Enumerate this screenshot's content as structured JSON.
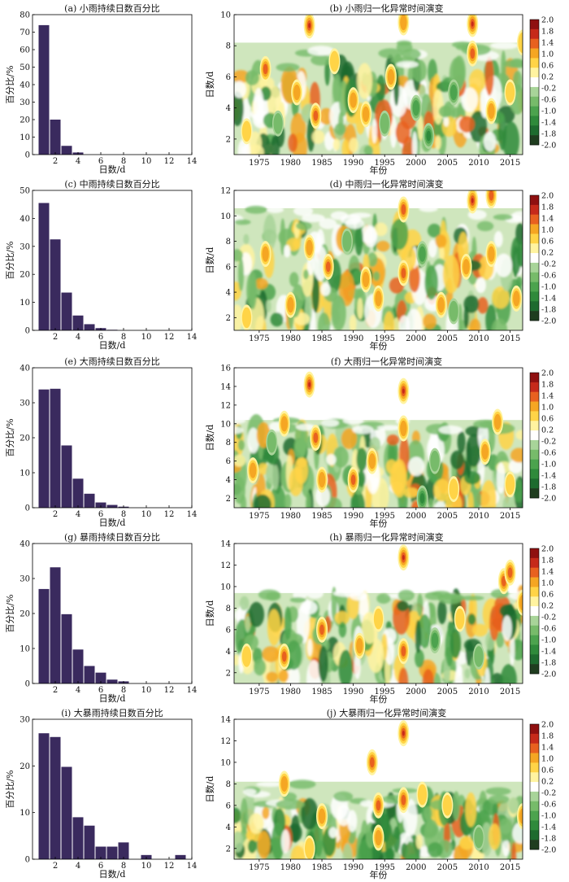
{
  "charts": [
    {
      "type": "bar",
      "title": "(a) 小雨持续日数百分比",
      "xlabel": "日数/d",
      "ylabel": "百分比/%",
      "xlim": [
        0,
        14
      ],
      "ylim": [
        0,
        80
      ],
      "xticks": [
        2,
        4,
        6,
        8,
        10,
        12,
        14
      ],
      "yticks": [
        0,
        10,
        20,
        30,
        40,
        50,
        60,
        70,
        80
      ],
      "bar_color": "#3a2a5e",
      "x": [
        1,
        2,
        3,
        4
      ],
      "values": [
        74,
        20,
        5,
        1.2
      ]
    },
    {
      "type": "heatmap",
      "title": "(b) 小雨归一化异常时间演变",
      "xlabel": "年份",
      "ylabel": "日数/d",
      "xlim": [
        1971,
        2017
      ],
      "ylim": [
        1,
        10
      ],
      "xticks": [
        1975,
        1980,
        1985,
        1990,
        1995,
        2000,
        2005,
        2010,
        2015
      ],
      "yticks": [
        2,
        4,
        6,
        8,
        10
      ],
      "nodata_above": 8.2,
      "upper_band": 6.6,
      "hotspots": [
        {
          "x": 1983,
          "y": 9.3,
          "v": 1.9
        },
        {
          "x": 1998,
          "y": 9.5,
          "v": 1.5
        },
        {
          "x": 2009,
          "y": 9.4,
          "v": 1.9
        },
        {
          "x": 1976,
          "y": 6.5,
          "v": 1.7
        },
        {
          "x": 1981,
          "y": 5.0,
          "v": 1.2
        },
        {
          "x": 1984,
          "y": 3.5,
          "v": 1.6
        },
        {
          "x": 1990,
          "y": 4.5,
          "v": 1.3
        },
        {
          "x": 1992,
          "y": 3.6,
          "v": 1.5
        },
        {
          "x": 1996,
          "y": 6.0,
          "v": 1.2
        },
        {
          "x": 2009,
          "y": 7.5,
          "v": 1.6
        },
        {
          "x": 2012,
          "y": 3.8,
          "v": 1.3
        },
        {
          "x": 2015,
          "y": 5.0,
          "v": 1.1
        },
        {
          "x": 2017,
          "y": 8.2,
          "v": 0.9
        },
        {
          "x": 1987,
          "y": 7.0,
          "v": 1.0
        },
        {
          "x": 1973,
          "y": 2.5,
          "v": 1.0
        },
        {
          "x": 2000,
          "y": 4.0,
          "v": -1.4
        },
        {
          "x": 2002,
          "y": 2.2,
          "v": -1.8
        },
        {
          "x": 1978,
          "y": 3.0,
          "v": -1.0
        },
        {
          "x": 2006,
          "y": 5.0,
          "v": -1.2
        },
        {
          "x": 1995,
          "y": 3.0,
          "v": -0.9
        }
      ]
    },
    {
      "type": "bar",
      "title": "(c) 中雨持续日数百分比",
      "xlabel": "日数/d",
      "ylabel": "百分比/%",
      "xlim": [
        0,
        14
      ],
      "ylim": [
        0,
        50
      ],
      "xticks": [
        2,
        4,
        6,
        8,
        10,
        12,
        14
      ],
      "yticks": [
        0,
        10,
        20,
        30,
        40,
        50
      ],
      "bar_color": "#3a2a5e",
      "x": [
        1,
        2,
        3,
        4,
        5,
        6,
        7
      ],
      "values": [
        45.5,
        32.5,
        13.5,
        5.3,
        2.2,
        0.8,
        0.2
      ]
    },
    {
      "type": "heatmap",
      "title": "(d) 中雨归一化异常时间演变",
      "xlabel": "年份",
      "ylabel": "日数/d",
      "xlim": [
        1971,
        2017
      ],
      "ylim": [
        1,
        12
      ],
      "xticks": [
        1975,
        1980,
        1985,
        1990,
        1995,
        2000,
        2005,
        2010,
        2015
      ],
      "yticks": [
        2,
        4,
        6,
        8,
        10,
        12
      ],
      "nodata_above": 10.6,
      "upper_band": 9.0,
      "hotspots": [
        {
          "x": 1998,
          "y": 10.5,
          "v": 1.8
        },
        {
          "x": 2009,
          "y": 11.2,
          "v": 1.9
        },
        {
          "x": 2012,
          "y": 11.6,
          "v": 1.6
        },
        {
          "x": 1976,
          "y": 7.0,
          "v": 1.2
        },
        {
          "x": 1980,
          "y": 3.0,
          "v": 1.5
        },
        {
          "x": 1983,
          "y": 7.5,
          "v": 1.4
        },
        {
          "x": 1986,
          "y": 6.0,
          "v": 1.6
        },
        {
          "x": 1992,
          "y": 5.0,
          "v": 1.3
        },
        {
          "x": 1994,
          "y": 3.5,
          "v": 1.5
        },
        {
          "x": 1998,
          "y": 5.5,
          "v": 1.6
        },
        {
          "x": 2004,
          "y": 3.0,
          "v": 1.2
        },
        {
          "x": 2008,
          "y": 6.0,
          "v": 1.3
        },
        {
          "x": 2012,
          "y": 7.0,
          "v": 1.5
        },
        {
          "x": 2016,
          "y": 3.5,
          "v": 1.2
        },
        {
          "x": 1973,
          "y": 2.0,
          "v": 0.9
        },
        {
          "x": 2001,
          "y": 7.0,
          "v": -1.2
        },
        {
          "x": 1989,
          "y": 8.0,
          "v": -0.9
        },
        {
          "x": 2006,
          "y": 2.5,
          "v": -1.0
        }
      ]
    },
    {
      "type": "bar",
      "title": "(e) 大雨持续日数百分比",
      "xlabel": "日数/d",
      "ylabel": "百分比/%",
      "xlim": [
        0,
        14
      ],
      "ylim": [
        0,
        40
      ],
      "xticks": [
        2,
        4,
        6,
        8,
        10,
        12,
        14
      ],
      "yticks": [
        0,
        10,
        20,
        30,
        40
      ],
      "bar_color": "#3a2a5e",
      "x": [
        1,
        2,
        3,
        4,
        5,
        6,
        7,
        8
      ],
      "values": [
        33.8,
        34.0,
        17.8,
        8.3,
        4.0,
        1.5,
        0.8,
        0.3
      ]
    },
    {
      "type": "heatmap",
      "title": "(f) 大雨归一化异常时间演变",
      "xlabel": "年份",
      "ylabel": "日数/d",
      "xlim": [
        1971,
        2017
      ],
      "ylim": [
        1,
        16
      ],
      "xticks": [
        1975,
        1980,
        1985,
        1990,
        1995,
        2000,
        2005,
        2010,
        2015
      ],
      "yticks": [
        2,
        4,
        6,
        8,
        10,
        12,
        14,
        16
      ],
      "nodata_above": 10.4,
      "upper_band": 9.2,
      "hotspots": [
        {
          "x": 1983,
          "y": 14.2,
          "v": 1.9
        },
        {
          "x": 1998,
          "y": 13.5,
          "v": 1.9
        },
        {
          "x": 1998,
          "y": 9.5,
          "v": 1.4
        },
        {
          "x": 1979,
          "y": 10.0,
          "v": 1.3
        },
        {
          "x": 2013,
          "y": 10.2,
          "v": 1.2
        },
        {
          "x": 1974,
          "y": 5.0,
          "v": 1.3
        },
        {
          "x": 1984,
          "y": 8.5,
          "v": 1.6
        },
        {
          "x": 1985,
          "y": 4.0,
          "v": 1.4
        },
        {
          "x": 1990,
          "y": 4.0,
          "v": 1.7
        },
        {
          "x": 1993,
          "y": 6.0,
          "v": 1.2
        },
        {
          "x": 2006,
          "y": 3.0,
          "v": 1.1
        },
        {
          "x": 2011,
          "y": 7.0,
          "v": 1.5
        },
        {
          "x": 2015,
          "y": 3.5,
          "v": 1.0
        },
        {
          "x": 2001,
          "y": 2.0,
          "v": -1.8
        },
        {
          "x": 2003,
          "y": 6.0,
          "v": -1.1
        },
        {
          "x": 1977,
          "y": 8.0,
          "v": -0.9
        }
      ]
    },
    {
      "type": "bar",
      "title": "(g) 暴雨持续日数百分比",
      "xlabel": "日数/d",
      "ylabel": "百分比/%",
      "xlim": [
        0,
        14
      ],
      "ylim": [
        0,
        40
      ],
      "xticks": [
        2,
        4,
        6,
        8,
        10,
        12,
        14
      ],
      "yticks": [
        0,
        10,
        20,
        30,
        40
      ],
      "bar_color": "#3a2a5e",
      "x": [
        1,
        2,
        3,
        4,
        5,
        6,
        7,
        8
      ],
      "values": [
        27.0,
        33.2,
        19.8,
        9.7,
        5.0,
        3.1,
        1.1,
        0.6
      ]
    },
    {
      "type": "heatmap",
      "title": "(h) 暴雨归一化异常时间演变",
      "xlabel": "年份",
      "ylabel": "日数/d",
      "xlim": [
        1971,
        2017
      ],
      "ylim": [
        1,
        14
      ],
      "xticks": [
        1975,
        1980,
        1985,
        1990,
        1995,
        2000,
        2005,
        2010,
        2015
      ],
      "yticks": [
        2,
        4,
        6,
        8,
        10,
        12,
        14
      ],
      "nodata_above": 9.4,
      "upper_band": 8.6,
      "hotspots": [
        {
          "x": 1998,
          "y": 12.7,
          "v": 1.9
        },
        {
          "x": 2014,
          "y": 10.5,
          "v": 1.8
        },
        {
          "x": 2015,
          "y": 11.3,
          "v": 1.6
        },
        {
          "x": 1979,
          "y": 3.5,
          "v": 1.7
        },
        {
          "x": 1985,
          "y": 6.0,
          "v": 1.6
        },
        {
          "x": 1991,
          "y": 4.5,
          "v": 1.3
        },
        {
          "x": 1998,
          "y": 4.0,
          "v": 1.8
        },
        {
          "x": 1994,
          "y": 7.0,
          "v": 1.1
        },
        {
          "x": 2007,
          "y": 7.0,
          "v": 0.9
        },
        {
          "x": 2017,
          "y": 8.5,
          "v": 1.2
        },
        {
          "x": 1973,
          "y": 3.5,
          "v": 1.0
        },
        {
          "x": 2003,
          "y": 5.0,
          "v": -1.2
        },
        {
          "x": 2010,
          "y": 3.5,
          "v": -1.0
        }
      ]
    },
    {
      "type": "bar",
      "title": "(i) 大暴雨持续日数百分比",
      "xlabel": "日数/d",
      "ylabel": "百分比/%",
      "xlim": [
        0,
        14
      ],
      "ylim": [
        0,
        30
      ],
      "xticks": [
        2,
        4,
        6,
        8,
        10,
        12,
        14
      ],
      "yticks": [
        0,
        10,
        20,
        30
      ],
      "bar_color": "#3a2a5e",
      "x": [
        1,
        2,
        3,
        4,
        5,
        6,
        7,
        8,
        10,
        13
      ],
      "values": [
        27.0,
        26.2,
        19.8,
        9.0,
        7.2,
        2.7,
        2.7,
        3.6,
        0.9,
        0.9
      ]
    },
    {
      "type": "heatmap",
      "title": "(j) 大暴雨归一化异常时间演变",
      "xlabel": "年份",
      "ylabel": "日数/d",
      "xlim": [
        1971,
        2017
      ],
      "ylim": [
        1,
        14
      ],
      "xticks": [
        1975,
        1980,
        1985,
        1990,
        1995,
        2000,
        2005,
        2010,
        2015
      ],
      "yticks": [
        2,
        4,
        6,
        8,
        10,
        12,
        14
      ],
      "nodata_above": 8.2,
      "upper_band": 6.0,
      "hotspots": [
        {
          "x": 1998,
          "y": 12.7,
          "v": 1.9
        },
        {
          "x": 1993,
          "y": 10.0,
          "v": 1.8
        },
        {
          "x": 1994,
          "y": 6.0,
          "v": 1.7
        },
        {
          "x": 1998,
          "y": 6.5,
          "v": 1.6
        },
        {
          "x": 1979,
          "y": 8.0,
          "v": 1.3
        },
        {
          "x": 1985,
          "y": 5.0,
          "v": 1.3
        },
        {
          "x": 2001,
          "y": 7.0,
          "v": 1.1
        },
        {
          "x": 2005,
          "y": 6.0,
          "v": 1.0
        },
        {
          "x": 1994,
          "y": 3.0,
          "v": 1.5
        },
        {
          "x": 2017,
          "y": 5.0,
          "v": 1.2
        },
        {
          "x": 1983,
          "y": 2.0,
          "v": 0.9
        },
        {
          "x": 2010,
          "y": 3.0,
          "v": -0.9
        }
      ]
    }
  ],
  "colorbar": {
    "ticks": [
      "2.0",
      "1.8",
      "1.4",
      "1.0",
      "0.6",
      "0.2",
      "-0.2",
      "-0.6",
      "-1.0",
      "-1.4",
      "-1.8",
      "-2.0"
    ],
    "colors": [
      "#1f3d1f",
      "#1e6b2f",
      "#2f8a3b",
      "#4ca34e",
      "#77bb6a",
      "#a8d499",
      "#ffffff",
      "#fff3a0",
      "#ffd447",
      "#f5a623",
      "#e8611f",
      "#c62a1a",
      "#8f1010"
    ]
  }
}
